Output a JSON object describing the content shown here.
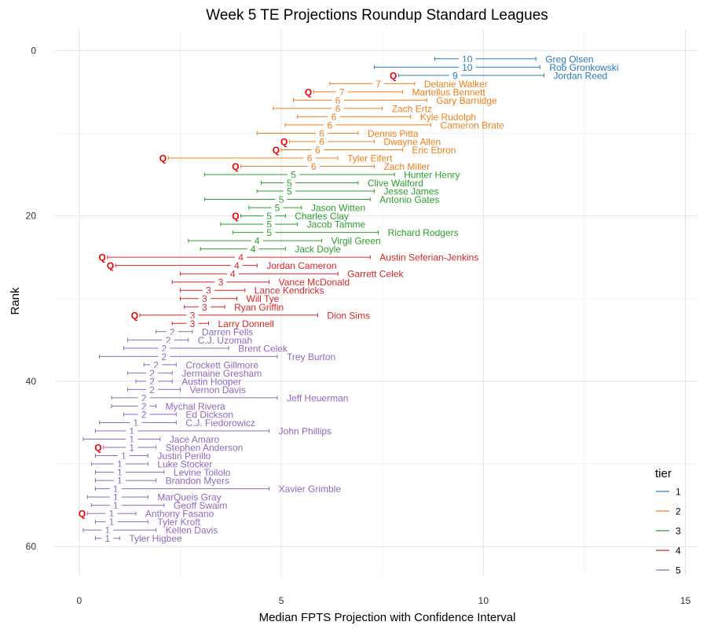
{
  "chart_data": {
    "type": "errorbar",
    "title": "Week 5 TE Projections Roundup Standard Leagues",
    "xlabel": "Median FPTS Projection with Confidence Interval",
    "ylabel": "Rank",
    "xlim": [
      -0.6,
      15.3
    ],
    "ylim": [
      63.5,
      -2.5
    ],
    "x_ticks": [
      0,
      5,
      10,
      15
    ],
    "y_ticks": [
      0,
      20,
      40,
      60
    ],
    "y_reversed": true,
    "grid": true,
    "question_mark_label": "Q",
    "legend": {
      "title": "tier",
      "position": "right",
      "entries": [
        {
          "label": "1",
          "color": "#2b7bba"
        },
        {
          "label": "2",
          "color": "#f07f1b"
        },
        {
          "label": "3",
          "color": "#2ca02c"
        },
        {
          "label": "4",
          "color": "#d62728"
        },
        {
          "label": "5",
          "color": "#9467bd"
        }
      ]
    },
    "players": [
      {
        "rank": 1,
        "name": "Greg Olsen",
        "tier": "1",
        "label": "10",
        "median": 9.6,
        "low": 8.8,
        "high": 11.3,
        "q": false
      },
      {
        "rank": 2,
        "name": "Rob Gronkowski",
        "tier": "1",
        "label": "10",
        "median": 9.6,
        "low": 7.3,
        "high": 11.4,
        "q": false
      },
      {
        "rank": 3,
        "name": "Jordan Reed",
        "tier": "1",
        "label": "9",
        "median": 9.3,
        "low": 7.9,
        "high": 11.5,
        "q": true
      },
      {
        "rank": 4,
        "name": "Delanie Walker",
        "tier": "2",
        "label": "7",
        "median": 7.4,
        "low": 6.2,
        "high": 8.3,
        "q": false
      },
      {
        "rank": 5,
        "name": "Martellus Bennett",
        "tier": "2",
        "label": "7",
        "median": 6.5,
        "low": 5.8,
        "high": 8.0,
        "q": true
      },
      {
        "rank": 6,
        "name": "Gary Barnidge",
        "tier": "2",
        "label": "6",
        "median": 6.4,
        "low": 5.3,
        "high": 8.6,
        "q": false
      },
      {
        "rank": 7,
        "name": "Zach Ertz",
        "tier": "2",
        "label": "6",
        "median": 6.4,
        "low": 4.8,
        "high": 7.5,
        "q": false
      },
      {
        "rank": 8,
        "name": "Kyle Rudolph",
        "tier": "2",
        "label": "6",
        "median": 6.3,
        "low": 5.4,
        "high": 8.2,
        "q": false
      },
      {
        "rank": 9,
        "name": "Cameron Brate",
        "tier": "2",
        "label": "6",
        "median": 6.2,
        "low": 5.1,
        "high": 8.7,
        "q": false
      },
      {
        "rank": 10,
        "name": "Dennis Pitta",
        "tier": "2",
        "label": "6",
        "median": 6.0,
        "low": 4.4,
        "high": 6.9,
        "q": false
      },
      {
        "rank": 11,
        "name": "Dwayne Allen",
        "tier": "2",
        "label": "6",
        "median": 6.0,
        "low": 5.2,
        "high": 7.3,
        "q": true
      },
      {
        "rank": 12,
        "name": "Eric Ebron",
        "tier": "2",
        "label": "6",
        "median": 5.9,
        "low": 5.0,
        "high": 8.0,
        "q": true
      },
      {
        "rank": 13,
        "name": "Tyler Eifert",
        "tier": "2",
        "label": "6",
        "median": 5.7,
        "low": 2.2,
        "high": 6.4,
        "q": true
      },
      {
        "rank": 14,
        "name": "Zach Miller",
        "tier": "2",
        "label": "6",
        "median": 5.8,
        "low": 4.0,
        "high": 7.3,
        "q": true
      },
      {
        "rank": 15,
        "name": "Hunter Henry",
        "tier": "3",
        "label": "5",
        "median": 5.3,
        "low": 3.1,
        "high": 7.8,
        "q": false
      },
      {
        "rank": 16,
        "name": "Clive Walford",
        "tier": "3",
        "label": "5",
        "median": 5.2,
        "low": 4.5,
        "high": 6.9,
        "q": false
      },
      {
        "rank": 17,
        "name": "Jesse James",
        "tier": "3",
        "label": "5",
        "median": 5.2,
        "low": 4.4,
        "high": 7.3,
        "q": false
      },
      {
        "rank": 18,
        "name": "Antonio Gates",
        "tier": "3",
        "label": "5",
        "median": 5.0,
        "low": 3.1,
        "high": 7.2,
        "q": false
      },
      {
        "rank": 19,
        "name": "Jason Witten",
        "tier": "3",
        "label": "5",
        "median": 4.9,
        "low": 4.2,
        "high": 5.5,
        "q": false
      },
      {
        "rank": 20,
        "name": "Charles Clay",
        "tier": "3",
        "label": "5",
        "median": 4.7,
        "low": 4.0,
        "high": 5.1,
        "q": true
      },
      {
        "rank": 21,
        "name": "Jacob Tamme",
        "tier": "3",
        "label": "5",
        "median": 4.7,
        "low": 3.5,
        "high": 5.4,
        "q": false
      },
      {
        "rank": 22,
        "name": "Richard Rodgers",
        "tier": "3",
        "label": "5",
        "median": 4.7,
        "low": 3.8,
        "high": 7.4,
        "q": false
      },
      {
        "rank": 23,
        "name": "Virgil Green",
        "tier": "3",
        "label": "4",
        "median": 4.4,
        "low": 2.7,
        "high": 6.0,
        "q": false
      },
      {
        "rank": 24,
        "name": "Jack Doyle",
        "tier": "3",
        "label": "4",
        "median": 4.3,
        "low": 3.0,
        "high": 5.1,
        "q": false
      },
      {
        "rank": 25,
        "name": "Austin Seferian-Jenkins",
        "tier": "4",
        "label": "4",
        "median": 4.0,
        "low": 0.7,
        "high": 7.2,
        "q": true
      },
      {
        "rank": 26,
        "name": "Jordan Cameron",
        "tier": "4",
        "label": "4",
        "median": 3.9,
        "low": 0.9,
        "high": 4.4,
        "q": true
      },
      {
        "rank": 27,
        "name": "Garrett Celek",
        "tier": "4",
        "label": "4",
        "median": 3.8,
        "low": 2.5,
        "high": 6.4,
        "q": false
      },
      {
        "rank": 28,
        "name": "Vance McDonald",
        "tier": "4",
        "label": "3",
        "median": 3.5,
        "low": 2.3,
        "high": 4.7,
        "q": false
      },
      {
        "rank": 29,
        "name": "Lance Kendricks",
        "tier": "4",
        "label": "3",
        "median": 3.2,
        "low": 2.5,
        "high": 4.1,
        "q": false
      },
      {
        "rank": 30,
        "name": "Will Tye",
        "tier": "4",
        "label": "3",
        "median": 3.1,
        "low": 2.5,
        "high": 3.9,
        "q": false
      },
      {
        "rank": 31,
        "name": "Ryan Griffin",
        "tier": "4",
        "label": "3",
        "median": 3.1,
        "low": 2.6,
        "high": 3.6,
        "q": false
      },
      {
        "rank": 32,
        "name": "Dion Sims",
        "tier": "4",
        "label": "3",
        "median": 2.8,
        "low": 1.5,
        "high": 5.9,
        "q": true
      },
      {
        "rank": 33,
        "name": "Larry Donnell",
        "tier": "4",
        "label": "3",
        "median": 2.8,
        "low": 2.3,
        "high": 3.2,
        "q": false
      },
      {
        "rank": 34,
        "name": "Darren Fells",
        "tier": "5",
        "label": "2",
        "median": 2.3,
        "low": 1.9,
        "high": 2.8,
        "q": false
      },
      {
        "rank": 35,
        "name": "C.J. Uzomah",
        "tier": "5",
        "label": "2",
        "median": 2.2,
        "low": 1.2,
        "high": 2.7,
        "q": false
      },
      {
        "rank": 36,
        "name": "Brent Celek",
        "tier": "5",
        "label": "2",
        "median": 2.1,
        "low": 1.1,
        "high": 3.7,
        "q": false
      },
      {
        "rank": 37,
        "name": "Trey Burton",
        "tier": "5",
        "label": "2",
        "median": 2.1,
        "low": 0.5,
        "high": 4.9,
        "q": false
      },
      {
        "rank": 38,
        "name": "Crockett Gillmore",
        "tier": "5",
        "label": "2",
        "median": 1.9,
        "low": 1.6,
        "high": 2.4,
        "q": false
      },
      {
        "rank": 39,
        "name": "Jermaine Gresham",
        "tier": "5",
        "label": "2",
        "median": 1.8,
        "low": 1.2,
        "high": 2.3,
        "q": false
      },
      {
        "rank": 40,
        "name": "Austin Hooper",
        "tier": "5",
        "label": "2",
        "median": 1.8,
        "low": 1.4,
        "high": 2.3,
        "q": false
      },
      {
        "rank": 41,
        "name": "Vernon Davis",
        "tier": "5",
        "label": "2",
        "median": 1.8,
        "low": 1.2,
        "high": 2.5,
        "q": false
      },
      {
        "rank": 42,
        "name": "Jeff Heuerman",
        "tier": "5",
        "label": "2",
        "median": 1.6,
        "low": 0.8,
        "high": 4.9,
        "q": false
      },
      {
        "rank": 43,
        "name": "Mychal Rivera",
        "tier": "5",
        "label": "2",
        "median": 1.6,
        "low": 0.8,
        "high": 1.9,
        "q": false
      },
      {
        "rank": 44,
        "name": "Ed Dickson",
        "tier": "5",
        "label": "2",
        "median": 1.6,
        "low": 1.1,
        "high": 2.4,
        "q": false
      },
      {
        "rank": 45,
        "name": "C.J. Fiedorowicz",
        "tier": "5",
        "label": "1",
        "median": 1.4,
        "low": 0.5,
        "high": 2.4,
        "q": false
      },
      {
        "rank": 46,
        "name": "John Phillips",
        "tier": "5",
        "label": "1",
        "median": 1.3,
        "low": 0.4,
        "high": 4.7,
        "q": false
      },
      {
        "rank": 47,
        "name": "Jace Amaro",
        "tier": "5",
        "label": "1",
        "median": 1.3,
        "low": 0.1,
        "high": 2.0,
        "q": false
      },
      {
        "rank": 48,
        "name": "Stephen Anderson",
        "tier": "5",
        "label": "1",
        "median": 1.3,
        "low": 0.6,
        "high": 1.9,
        "q": true
      },
      {
        "rank": 49,
        "name": "Justin Perillo",
        "tier": "5",
        "label": "1",
        "median": 1.1,
        "low": 0.4,
        "high": 1.7,
        "q": false
      },
      {
        "rank": 50,
        "name": "Luke Stocker",
        "tier": "5",
        "label": "1",
        "median": 1.0,
        "low": 0.3,
        "high": 1.7,
        "q": false
      },
      {
        "rank": 51,
        "name": "Levine Toilolo",
        "tier": "5",
        "label": "1",
        "median": 1.0,
        "low": 0.4,
        "high": 2.1,
        "q": false
      },
      {
        "rank": 52,
        "name": "Brandon Myers",
        "tier": "5",
        "label": "1",
        "median": 1.0,
        "low": 0.4,
        "high": 1.9,
        "q": false
      },
      {
        "rank": 53,
        "name": "Xavier Grimble",
        "tier": "5",
        "label": "1",
        "median": 0.9,
        "low": 0.4,
        "high": 4.7,
        "q": false
      },
      {
        "rank": 54,
        "name": "MarQueis Gray",
        "tier": "5",
        "label": "1",
        "median": 0.9,
        "low": 0.2,
        "high": 1.7,
        "q": false
      },
      {
        "rank": 55,
        "name": "Geoff Swaim",
        "tier": "5",
        "label": "1",
        "median": 0.9,
        "low": 0.3,
        "high": 2.1,
        "q": false
      },
      {
        "rank": 56,
        "name": "Anthony Fasano",
        "tier": "5",
        "label": "1",
        "median": 0.8,
        "low": 0.2,
        "high": 1.4,
        "q": true
      },
      {
        "rank": 57,
        "name": "Tyler Kroft",
        "tier": "5",
        "label": "1",
        "median": 0.8,
        "low": 0.4,
        "high": 1.7,
        "q": false
      },
      {
        "rank": 58,
        "name": "Kellen Davis",
        "tier": "5",
        "label": "1",
        "median": 0.7,
        "low": 0.1,
        "high": 1.9,
        "q": false
      },
      {
        "rank": 59,
        "name": "Tyler Higbee",
        "tier": "5",
        "label": "1",
        "median": 0.7,
        "low": 0.4,
        "high": 1.0,
        "q": false
      }
    ]
  }
}
